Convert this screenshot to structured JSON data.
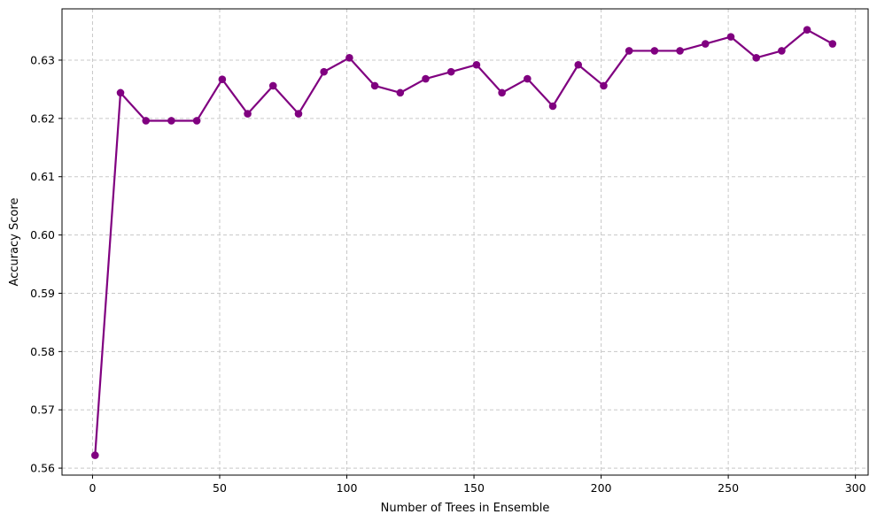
{
  "chart_data": {
    "type": "line",
    "title": "",
    "xlabel": "Number of Trees in Ensemble",
    "ylabel": "Accuracy Score",
    "xlim": [
      -12,
      305
    ],
    "ylim": [
      0.5588,
      0.6388
    ],
    "xticks": [
      0,
      50,
      100,
      150,
      200,
      250,
      300
    ],
    "xtick_labels": [
      "0",
      "50",
      "100",
      "150",
      "200",
      "250",
      "300"
    ],
    "yticks": [
      0.56,
      0.57,
      0.58,
      0.59,
      0.6,
      0.61,
      0.62,
      0.63
    ],
    "ytick_labels": [
      "0.56",
      "0.57",
      "0.58",
      "0.59",
      "0.60",
      "0.61",
      "0.62",
      "0.63"
    ],
    "grid": true,
    "line_color": "#800080",
    "marker": "circle",
    "series": [
      {
        "x": [
          1,
          11,
          21,
          31,
          41,
          51,
          61,
          71,
          81,
          91,
          101,
          111,
          121,
          131,
          141,
          151,
          161,
          171,
          181,
          191,
          201,
          211,
          221,
          231,
          241,
          251,
          261,
          271,
          281,
          291
        ],
        "values": [
          0.5622,
          0.6244,
          0.6196,
          0.6196,
          0.6196,
          0.6267,
          0.6208,
          0.6256,
          0.6208,
          0.628,
          0.6304,
          0.6256,
          0.6244,
          0.6268,
          0.628,
          0.6292,
          0.6244,
          0.6268,
          0.6221,
          0.6292,
          0.6256,
          0.6316,
          0.6316,
          0.6316,
          0.6328,
          0.634,
          0.6304,
          0.6316,
          0.6352,
          0.6328
        ]
      }
    ]
  }
}
